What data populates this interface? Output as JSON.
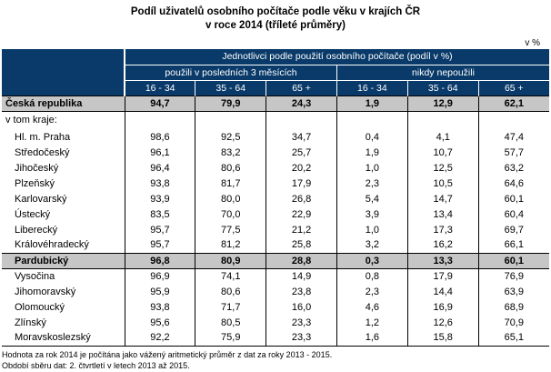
{
  "title": {
    "line1": "Podíl uživatelů osobního počítače podle věku v krajích ČR",
    "line2": "v roce 2014 (tříleté průměry)"
  },
  "unit_label": "v %",
  "table": {
    "group_header": "Jednotlivci podle použití osobního počítače (podíl v %)",
    "subgroups": [
      "použili v posledních 3 měsících",
      "nikdy nepoužili"
    ],
    "age_columns": [
      "16 - 34",
      "35 - 64",
      "65 +",
      "16 - 34",
      "35 - 64",
      "65 +"
    ],
    "summary_row": {
      "label": "Česká republika",
      "values": [
        "94,7",
        "79,9",
        "24,3",
        "1,9",
        "12,9",
        "62,1"
      ]
    },
    "section_label": "v tom kraje:",
    "rows": [
      {
        "label": "Hl. m. Praha",
        "values": [
          "98,6",
          "92,5",
          "34,7",
          "0,4",
          "4,1",
          "47,4"
        ],
        "highlight": false
      },
      {
        "label": "Středočeský",
        "values": [
          "96,1",
          "83,2",
          "25,7",
          "1,9",
          "10,7",
          "57,7"
        ],
        "highlight": false
      },
      {
        "label": "Jihočeský",
        "values": [
          "96,4",
          "80,6",
          "20,2",
          "1,0",
          "12,5",
          "63,2"
        ],
        "highlight": false
      },
      {
        "label": "Plzeňský",
        "values": [
          "93,8",
          "81,7",
          "17,9",
          "2,3",
          "10,5",
          "64,6"
        ],
        "highlight": false
      },
      {
        "label": "Karlovarský",
        "values": [
          "93,9",
          "80,0",
          "26,8",
          "5,4",
          "14,7",
          "60,1"
        ],
        "highlight": false
      },
      {
        "label": "Ústecký",
        "values": [
          "83,5",
          "70,0",
          "22,9",
          "3,9",
          "13,4",
          "60,4"
        ],
        "highlight": false
      },
      {
        "label": "Liberecký",
        "values": [
          "95,7",
          "77,5",
          "21,2",
          "1,0",
          "17,3",
          "69,7"
        ],
        "highlight": false
      },
      {
        "label": "Královéhradecký",
        "values": [
          "95,7",
          "81,2",
          "25,8",
          "3,2",
          "16,2",
          "66,1"
        ],
        "highlight": false
      },
      {
        "label": "Pardubický",
        "values": [
          "96,8",
          "80,9",
          "28,8",
          "0,3",
          "13,3",
          "60,1"
        ],
        "highlight": true
      },
      {
        "label": "Vysočina",
        "values": [
          "96,9",
          "74,1",
          "14,9",
          "0,8",
          "17,9",
          "76,9"
        ],
        "highlight": false
      },
      {
        "label": "Jihomoravský",
        "values": [
          "95,9",
          "80,6",
          "23,8",
          "2,3",
          "14,4",
          "63,9"
        ],
        "highlight": false
      },
      {
        "label": "Olomoucký",
        "values": [
          "93,8",
          "71,7",
          "16,0",
          "4,6",
          "16,9",
          "68,9"
        ],
        "highlight": false
      },
      {
        "label": "Zlínský",
        "values": [
          "95,6",
          "80,5",
          "23,3",
          "1,2",
          "12,6",
          "70,9"
        ],
        "highlight": false
      },
      {
        "label": "Moravskoslezský",
        "values": [
          "92,2",
          "75,9",
          "23,3",
          "1,6",
          "15,8",
          "65,1"
        ],
        "highlight": false
      }
    ]
  },
  "footnotes": [
    "Hodnota za rok 2014 je počítána jako vážený aritmetický průměr z dat za roky 2013 - 2015.",
    "Období sběru dat: 2. čtvrtletí v letech 2013 až 2015."
  ],
  "colors": {
    "header_bg": "#093A69",
    "highlight_bg": "#C6C6C6"
  }
}
